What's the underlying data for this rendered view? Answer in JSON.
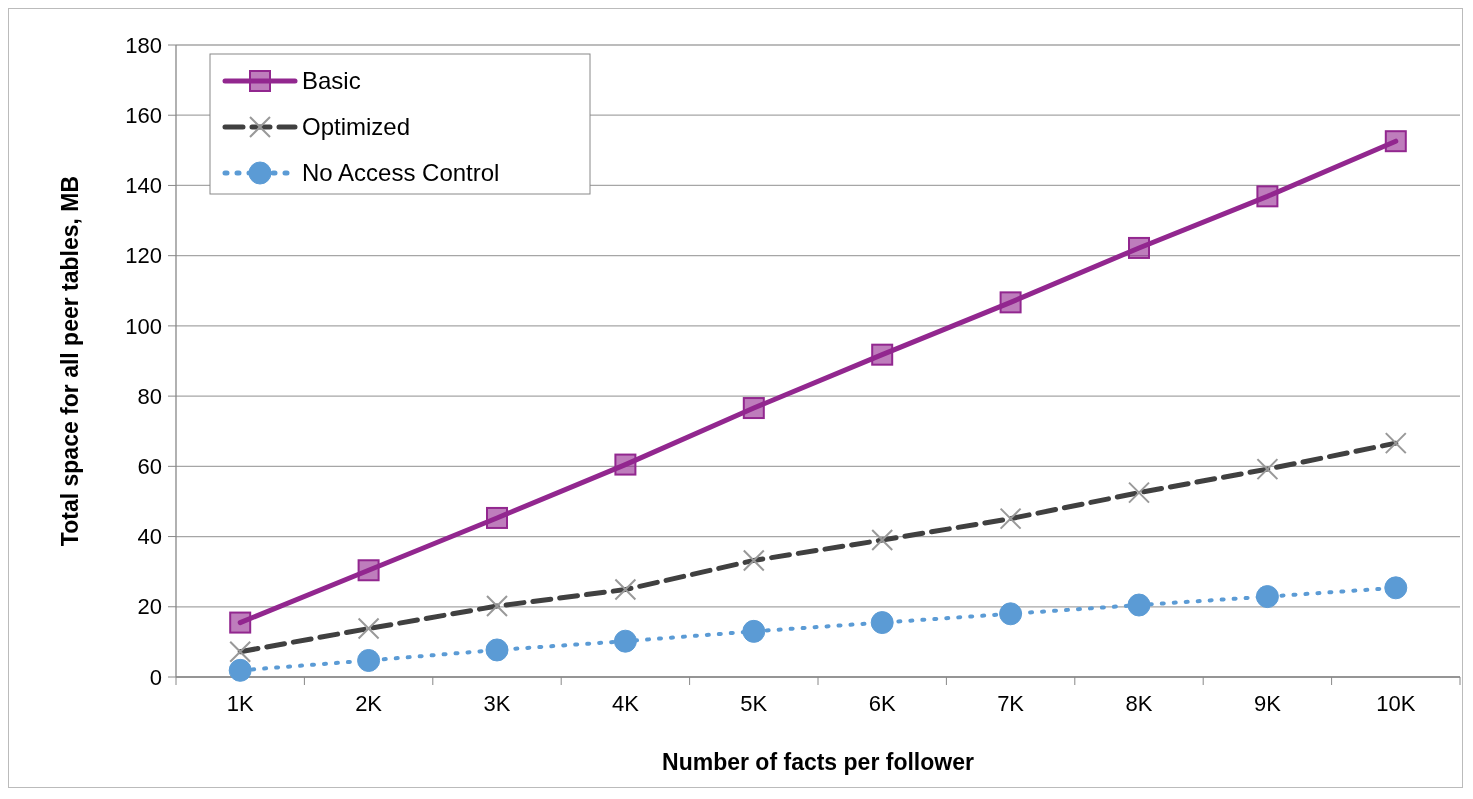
{
  "chart_data": {
    "type": "line",
    "xlabel": "Number of facts per follower",
    "ylabel": "Total space for all peer tables, MB",
    "categories": [
      "1K",
      "2K",
      "3K",
      "4K",
      "5K",
      "6K",
      "7K",
      "8K",
      "9K",
      "10K"
    ],
    "series": [
      {
        "name": "Basic",
        "color": "#92278f",
        "marker": "square",
        "line_style": "solid",
        "values": [
          15.5,
          30.4,
          45.3,
          60.5,
          76.6,
          91.8,
          106.7,
          122.2,
          136.9,
          152.6
        ]
      },
      {
        "name": "Optimized",
        "color": "#404040",
        "marker": "cross",
        "line_style": "dashed",
        "values": [
          7.2,
          13.8,
          20.2,
          24.9,
          33.2,
          39,
          45.1,
          52.5,
          59.2,
          66.6
        ]
      },
      {
        "name": "No Access Control",
        "color": "#5b9bd5",
        "marker": "circle",
        "line_style": "dotted",
        "values": [
          1.9,
          4.7,
          7.7,
          10.2,
          13,
          15.5,
          18,
          20.5,
          22.9,
          25.4
        ]
      }
    ],
    "ylim": [
      0,
      180
    ],
    "yticks": [
      0,
      20,
      40,
      60,
      80,
      100,
      120,
      140,
      160,
      180
    ],
    "grid": "y",
    "legend": "top left"
  }
}
